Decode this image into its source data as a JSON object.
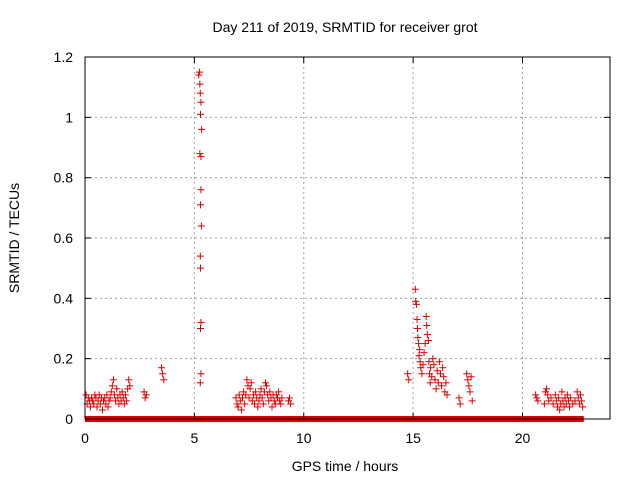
{
  "chart_data": {
    "type": "scatter",
    "title": "Day 211 of 2019, SRMTID for receiver grot",
    "xlabel": "GPS time / hours",
    "ylabel": "SRMTID / TECUs",
    "xlim": [
      0,
      24
    ],
    "ylim": [
      0,
      1.2
    ],
    "xticks": [
      0,
      5,
      10,
      15,
      20
    ],
    "xtick_labels": [
      "0",
      "5",
      "10",
      "15",
      "20"
    ],
    "yticks": [
      0,
      0.2,
      0.4,
      0.6,
      0.8,
      1.0,
      1.2
    ],
    "ytick_labels": [
      "0",
      "0.2",
      "0.4",
      "0.6",
      "0.8",
      "1",
      "1.2"
    ],
    "grid": true,
    "marker": "+",
    "color": "#dd0000",
    "series": [
      {
        "name": "SRMTID",
        "zero_line": [
          0,
          22.8
        ],
        "points": [
          [
            0.05,
            0.08
          ],
          [
            0.1,
            0.05
          ],
          [
            0.15,
            0.07
          ],
          [
            0.2,
            0.06
          ],
          [
            0.25,
            0.04
          ],
          [
            0.3,
            0.07
          ],
          [
            0.35,
            0.06
          ],
          [
            0.4,
            0.05
          ],
          [
            0.45,
            0.08
          ],
          [
            0.5,
            0.07
          ],
          [
            0.55,
            0.04
          ],
          [
            0.6,
            0.06
          ],
          [
            0.65,
            0.08
          ],
          [
            0.7,
            0.05
          ],
          [
            0.75,
            0.07
          ],
          [
            0.8,
            0.03
          ],
          [
            0.85,
            0.06
          ],
          [
            0.9,
            0.07
          ],
          [
            0.95,
            0.05
          ],
          [
            1.0,
            0.08
          ],
          [
            1.05,
            0.04
          ],
          [
            1.1,
            0.06
          ],
          [
            1.15,
            0.07
          ],
          [
            1.2,
            0.09
          ],
          [
            1.25,
            0.11
          ],
          [
            1.3,
            0.13
          ],
          [
            1.35,
            0.08
          ],
          [
            1.4,
            0.06
          ],
          [
            1.45,
            0.1
          ],
          [
            1.5,
            0.07
          ],
          [
            1.55,
            0.05
          ],
          [
            1.6,
            0.08
          ],
          [
            1.65,
            0.06
          ],
          [
            1.7,
            0.09
          ],
          [
            1.75,
            0.07
          ],
          [
            1.8,
            0.05
          ],
          [
            1.85,
            0.08
          ],
          [
            1.9,
            0.06
          ],
          [
            1.95,
            0.1
          ],
          [
            2.0,
            0.13
          ],
          [
            2.05,
            0.11
          ],
          [
            2.7,
            0.09
          ],
          [
            2.75,
            0.07
          ],
          [
            2.8,
            0.08
          ],
          [
            3.5,
            0.17
          ],
          [
            3.55,
            0.15
          ],
          [
            3.6,
            0.13
          ],
          [
            5.2,
            1.14
          ],
          [
            5.23,
            1.15
          ],
          [
            5.25,
            1.11
          ],
          [
            5.27,
            1.08
          ],
          [
            5.3,
            1.05
          ],
          [
            5.28,
            1.01
          ],
          [
            5.33,
            0.96
          ],
          [
            5.25,
            0.88
          ],
          [
            5.3,
            0.87
          ],
          [
            5.3,
            0.76
          ],
          [
            5.28,
            0.71
          ],
          [
            5.32,
            0.64
          ],
          [
            5.27,
            0.54
          ],
          [
            5.28,
            0.5
          ],
          [
            5.3,
            0.32
          ],
          [
            5.28,
            0.3
          ],
          [
            5.3,
            0.15
          ],
          [
            5.27,
            0.12
          ],
          [
            6.9,
            0.07
          ],
          [
            6.95,
            0.05
          ],
          [
            7.0,
            0.04
          ],
          [
            7.05,
            0.08
          ],
          [
            7.1,
            0.06
          ],
          [
            7.15,
            0.03
          ],
          [
            7.2,
            0.07
          ],
          [
            7.25,
            0.09
          ],
          [
            7.3,
            0.05
          ],
          [
            7.35,
            0.08
          ],
          [
            7.4,
            0.13
          ],
          [
            7.45,
            0.11
          ],
          [
            7.5,
            0.07
          ],
          [
            7.55,
            0.1
          ],
          [
            7.6,
            0.12
          ],
          [
            7.65,
            0.06
          ],
          [
            7.7,
            0.08
          ],
          [
            7.75,
            0.05
          ],
          [
            7.8,
            0.09
          ],
          [
            7.85,
            0.07
          ],
          [
            7.9,
            0.04
          ],
          [
            7.95,
            0.06
          ],
          [
            8.0,
            0.08
          ],
          [
            8.05,
            0.1
          ],
          [
            8.1,
            0.07
          ],
          [
            8.15,
            0.05
          ],
          [
            8.2,
            0.09
          ],
          [
            8.25,
            0.12
          ],
          [
            8.3,
            0.11
          ],
          [
            8.35,
            0.08
          ],
          [
            8.4,
            0.06
          ],
          [
            8.45,
            0.09
          ],
          [
            8.5,
            0.07
          ],
          [
            8.55,
            0.04
          ],
          [
            8.6,
            0.08
          ],
          [
            8.65,
            0.06
          ],
          [
            8.7,
            0.05
          ],
          [
            8.75,
            0.08
          ],
          [
            8.8,
            0.07
          ],
          [
            8.85,
            0.09
          ],
          [
            8.9,
            0.06
          ],
          [
            8.95,
            0.05
          ],
          [
            9.0,
            0.07
          ],
          [
            9.3,
            0.06
          ],
          [
            9.35,
            0.07
          ],
          [
            9.4,
            0.05
          ],
          [
            14.75,
            0.15
          ],
          [
            14.8,
            0.13
          ],
          [
            15.1,
            0.43
          ],
          [
            15.12,
            0.39
          ],
          [
            15.15,
            0.38
          ],
          [
            15.18,
            0.33
          ],
          [
            15.2,
            0.3
          ],
          [
            15.22,
            0.27
          ],
          [
            15.25,
            0.25
          ],
          [
            15.27,
            0.21
          ],
          [
            15.3,
            0.23
          ],
          [
            15.32,
            0.19
          ],
          [
            15.35,
            0.17
          ],
          [
            15.4,
            0.15
          ],
          [
            15.45,
            0.18
          ],
          [
            15.5,
            0.22
          ],
          [
            15.55,
            0.25
          ],
          [
            15.6,
            0.34
          ],
          [
            15.62,
            0.31
          ],
          [
            15.65,
            0.28
          ],
          [
            15.7,
            0.26
          ],
          [
            15.72,
            0.19
          ],
          [
            15.75,
            0.15
          ],
          [
            15.78,
            0.12
          ],
          [
            15.8,
            0.17
          ],
          [
            15.85,
            0.14
          ],
          [
            15.9,
            0.2
          ],
          [
            15.95,
            0.18
          ],
          [
            16.0,
            0.13
          ],
          [
            16.05,
            0.1
          ],
          [
            16.1,
            0.16
          ],
          [
            16.15,
            0.12
          ],
          [
            16.2,
            0.19
          ],
          [
            16.25,
            0.15
          ],
          [
            16.3,
            0.11
          ],
          [
            16.35,
            0.17
          ],
          [
            16.4,
            0.14
          ],
          [
            16.45,
            0.09
          ],
          [
            16.5,
            0.12
          ],
          [
            16.55,
            0.08
          ],
          [
            17.1,
            0.07
          ],
          [
            17.15,
            0.05
          ],
          [
            17.45,
            0.15
          ],
          [
            17.5,
            0.13
          ],
          [
            17.55,
            0.11
          ],
          [
            17.6,
            0.09
          ],
          [
            17.65,
            0.14
          ],
          [
            17.7,
            0.06
          ],
          [
            20.6,
            0.08
          ],
          [
            20.65,
            0.07
          ],
          [
            20.7,
            0.06
          ],
          [
            21.0,
            0.05
          ],
          [
            21.05,
            0.09
          ],
          [
            21.1,
            0.1
          ],
          [
            21.15,
            0.08
          ],
          [
            21.2,
            0.06
          ],
          [
            21.3,
            0.07
          ],
          [
            21.4,
            0.05
          ],
          [
            21.5,
            0.08
          ],
          [
            21.55,
            0.06
          ],
          [
            21.6,
            0.04
          ],
          [
            21.65,
            0.07
          ],
          [
            21.7,
            0.03
          ],
          [
            21.75,
            0.05
          ],
          [
            21.8,
            0.09
          ],
          [
            21.85,
            0.06
          ],
          [
            21.9,
            0.04
          ],
          [
            21.95,
            0.07
          ],
          [
            22.0,
            0.05
          ],
          [
            22.05,
            0.08
          ],
          [
            22.1,
            0.06
          ],
          [
            22.15,
            0.04
          ],
          [
            22.2,
            0.07
          ],
          [
            22.3,
            0.05
          ],
          [
            22.4,
            0.06
          ],
          [
            22.5,
            0.09
          ],
          [
            22.55,
            0.07
          ],
          [
            22.6,
            0.05
          ],
          [
            22.65,
            0.08
          ],
          [
            22.7,
            0.06
          ],
          [
            22.75,
            0.04
          ]
        ]
      }
    ]
  }
}
